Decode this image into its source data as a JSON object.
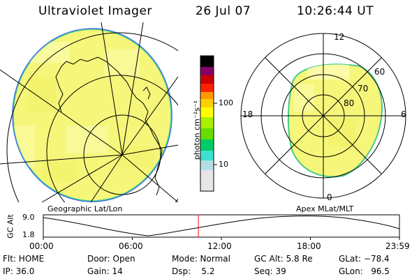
{
  "header": {
    "title": "Ultraviolet Imager",
    "date": "26 Jul 07",
    "time": "10:26:44 UT"
  },
  "left_panel": {
    "caption": "Geographic Lat/Lon"
  },
  "right_panel": {
    "caption": "Apex MLat/MLT",
    "mlt_labels": {
      "top": "12",
      "bottom": "0",
      "left": "18",
      "right": "6"
    },
    "lat_labels": [
      "60",
      "70",
      "80"
    ]
  },
  "colorbar": {
    "unit_label": "photon cm⁻²s⁻¹",
    "tick_labels": [
      "100",
      "10"
    ],
    "colors": [
      "#e6e6e6",
      "#b0e0e6",
      "#40e0d0",
      "#00cc66",
      "#66dd00",
      "#aaee00",
      "#ffff00",
      "#ffd000",
      "#ff9900",
      "#ff2200",
      "#cc0000",
      "#880066",
      "#000000"
    ]
  },
  "altitude_plot": {
    "y_label": "GC Alt",
    "y_ticks": [
      "9.0",
      "1.8"
    ],
    "x_ticks": [
      "00:00",
      "06:00",
      "12:00",
      "18:00",
      "23:59"
    ],
    "current_time_hours": 10.45,
    "marker_color": "#ff0000"
  },
  "info": {
    "row1": {
      "flt": "Flt: HOME",
      "door": "Door: Open",
      "mode": "Mode: Normal",
      "gcalt": "GC Alt: 5.8 Re",
      "glat": "GLat: −78.4"
    },
    "row2": {
      "ip": "IP: 36.0",
      "gain": "Gain: 14",
      "dsp": "Dsp:    5.2",
      "seq": "Seq: 39",
      "glon": "GLon:   96.5"
    }
  },
  "colors": {
    "aurora": "#f6f67a",
    "aurora_bright": "#fbfba8",
    "edge": "#44cc88",
    "limb": "#3355ff"
  }
}
